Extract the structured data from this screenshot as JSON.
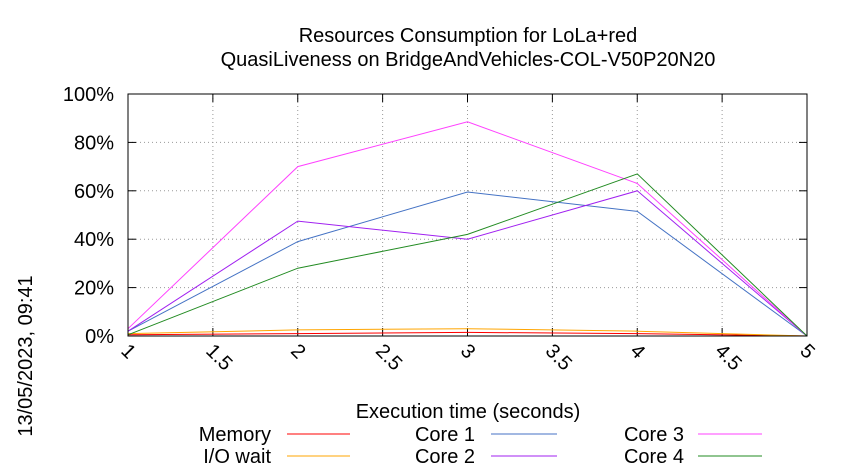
{
  "chart_data": {
    "type": "line",
    "title": "Resources Consumption for LoLa+red",
    "subtitle": "QuasiLiveness on BridgeAndVehicles-COL-V50P20N20",
    "xlabel": "Execution time (seconds)",
    "ylabel": "",
    "timestamp": "13/05/2023, 09:41",
    "xlim": [
      1,
      5
    ],
    "ylim": [
      0,
      100
    ],
    "x_ticks": [
      "1",
      "1.5",
      "2",
      "2.5",
      "3",
      "3.5",
      "4",
      "4.5",
      "5"
    ],
    "x_tick_values": [
      1,
      1.5,
      2,
      2.5,
      3,
      3.5,
      4,
      4.5,
      5
    ],
    "y_ticks": [
      "0%",
      "20%",
      "40%",
      "60%",
      "80%",
      "100%"
    ],
    "y_tick_values": [
      0,
      20,
      40,
      60,
      80,
      100
    ],
    "grid": true,
    "legend_position": "bottom",
    "x": [
      1,
      2,
      3,
      4,
      5
    ],
    "series": [
      {
        "name": "Memory",
        "color": "#ff0000",
        "values": [
          0.5,
          1,
          1.5,
          1,
          0
        ]
      },
      {
        "name": "I/O wait",
        "color": "#ffa500",
        "values": [
          1,
          2.5,
          3,
          2,
          0
        ]
      },
      {
        "name": "Core 1",
        "color": "#4472c4",
        "values": [
          2,
          39,
          59.5,
          51.5,
          0
        ]
      },
      {
        "name": "Core 2",
        "color": "#a020f0",
        "values": [
          2,
          47.5,
          40,
          60,
          0
        ]
      },
      {
        "name": "Core 3",
        "color": "#ff40ff",
        "values": [
          3,
          70,
          88.5,
          63,
          0
        ]
      },
      {
        "name": "Core 4",
        "color": "#228b22",
        "values": [
          0.5,
          28,
          42,
          67,
          0
        ]
      }
    ]
  }
}
